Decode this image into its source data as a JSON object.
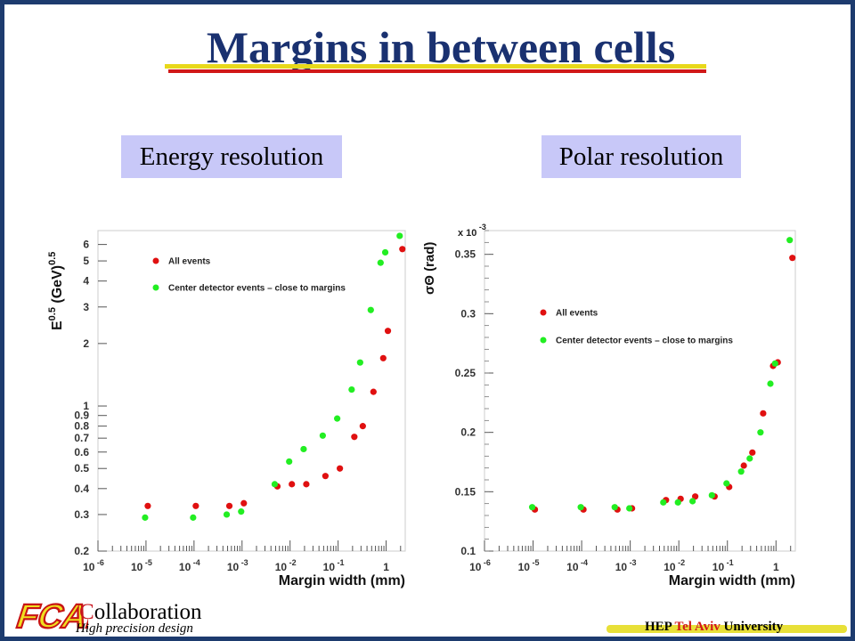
{
  "slide": {
    "title": "Margins in between cells",
    "label_left": "Energy resolution",
    "label_right": "Polar resolution",
    "footer": {
      "logo_text": "FCAL",
      "collab_first": "C",
      "collab_rest": "ollaboration",
      "tagline": "High precision design",
      "inst_a": "HEP ",
      "inst_b": "Tel Aviv",
      "inst_c": " University"
    },
    "colors": {
      "background": "#1d3b6e",
      "title": "#1a3170",
      "label_box": "#c8c8f8",
      "red_series": "#e01010",
      "green_series": "#22ee22"
    }
  },
  "chart_data": [
    {
      "type": "scatter",
      "title": "",
      "xlabel": "Margin width (mm)",
      "ylabel": "E^0.5 (GeV)^0.5",
      "ylabel_main": "E",
      "ylabel_sup1": "0.5",
      "ylabel_unit": " (GeV)",
      "ylabel_sup2": "0.5",
      "xscale": "log",
      "yscale": "log",
      "xlim": [
        1e-06,
        2.5
      ],
      "ylim": [
        0.2,
        7
      ],
      "grid": false,
      "legend_position": "top-left",
      "xticks": [
        {
          "v": 1e-06,
          "base": "10",
          "exp": "-6"
        },
        {
          "v": 1e-05,
          "base": "10",
          "exp": "-5"
        },
        {
          "v": 0.0001,
          "base": "10",
          "exp": "-4"
        },
        {
          "v": 0.001,
          "base": "10",
          "exp": "-3"
        },
        {
          "v": 0.01,
          "base": "10",
          "exp": "-2"
        },
        {
          "v": 0.1,
          "base": "10",
          "exp": "-1"
        },
        {
          "v": 1,
          "base": "1",
          "exp": ""
        }
      ],
      "yticks": [
        {
          "v": 0.2,
          "label": "0.2"
        },
        {
          "v": 0.3,
          "label": "0.3"
        },
        {
          "v": 0.4,
          "label": "0.4"
        },
        {
          "v": 0.5,
          "label": "0.5"
        },
        {
          "v": 0.6,
          "label": "0.6"
        },
        {
          "v": 0.7,
          "label": "0.7"
        },
        {
          "v": 0.8,
          "label": "0.8"
        },
        {
          "v": 0.9,
          "label": "0.9"
        },
        {
          "v": 1,
          "label": "1"
        },
        {
          "v": 2,
          "label": "2"
        },
        {
          "v": 3,
          "label": "3"
        },
        {
          "v": 4,
          "label": "4"
        },
        {
          "v": 5,
          "label": "5"
        },
        {
          "v": 6,
          "label": "6"
        }
      ],
      "series": [
        {
          "name": "All events",
          "color": "#e01010",
          "points": [
            [
              1e-05,
              0.33
            ],
            [
              0.0001,
              0.33
            ],
            [
              0.0005,
              0.33
            ],
            [
              0.001,
              0.34
            ],
            [
              0.005,
              0.41
            ],
            [
              0.01,
              0.42
            ],
            [
              0.02,
              0.42
            ],
            [
              0.05,
              0.46
            ],
            [
              0.1,
              0.5
            ],
            [
              0.2,
              0.71
            ],
            [
              0.3,
              0.8
            ],
            [
              0.5,
              1.17
            ],
            [
              0.8,
              1.7
            ],
            [
              1.0,
              2.3
            ],
            [
              2.0,
              5.7
            ]
          ]
        },
        {
          "name": "Center detector events – close to margins",
          "color": "#22ee22",
          "points": [
            [
              1e-05,
              0.29
            ],
            [
              0.0001,
              0.29
            ],
            [
              0.0005,
              0.3
            ],
            [
              0.001,
              0.31
            ],
            [
              0.005,
              0.42
            ],
            [
              0.01,
              0.54
            ],
            [
              0.02,
              0.62
            ],
            [
              0.05,
              0.72
            ],
            [
              0.1,
              0.87
            ],
            [
              0.2,
              1.2
            ],
            [
              0.3,
              1.62
            ],
            [
              0.5,
              2.9
            ],
            [
              0.8,
              4.9
            ],
            [
              1.0,
              5.5
            ],
            [
              2.0,
              6.6
            ]
          ]
        }
      ]
    },
    {
      "type": "scatter",
      "title": "",
      "xlabel": "Margin width (mm)",
      "ylabel": "σΘ (rad)",
      "yscale_note": "x 10",
      "yscale_note_exp": "-3",
      "xscale": "log",
      "yscale": "linear",
      "xlim": [
        1e-06,
        2.5
      ],
      "ylim": [
        0.1,
        0.37
      ],
      "grid": false,
      "legend_position": "left",
      "xticks": [
        {
          "v": 1e-06,
          "base": "10",
          "exp": "-6"
        },
        {
          "v": 1e-05,
          "base": "10",
          "exp": "-5"
        },
        {
          "v": 0.0001,
          "base": "10",
          "exp": "-4"
        },
        {
          "v": 0.001,
          "base": "10",
          "exp": "-3"
        },
        {
          "v": 0.01,
          "base": "10",
          "exp": "-2"
        },
        {
          "v": 0.1,
          "base": "10",
          "exp": "-1"
        },
        {
          "v": 1,
          "base": "1",
          "exp": ""
        }
      ],
      "yticks": [
        {
          "v": 0.1,
          "label": "0.1"
        },
        {
          "v": 0.15,
          "label": "0.15"
        },
        {
          "v": 0.2,
          "label": "0.2"
        },
        {
          "v": 0.25,
          "label": "0.25"
        },
        {
          "v": 0.3,
          "label": "0.3"
        },
        {
          "v": 0.35,
          "label": "0.35"
        }
      ],
      "series": [
        {
          "name": "All events",
          "color": "#e01010",
          "points": [
            [
              1e-05,
              0.135
            ],
            [
              0.0001,
              0.135
            ],
            [
              0.0005,
              0.135
            ],
            [
              0.001,
              0.136
            ],
            [
              0.005,
              0.143
            ],
            [
              0.01,
              0.144
            ],
            [
              0.02,
              0.146
            ],
            [
              0.05,
              0.146
            ],
            [
              0.1,
              0.154
            ],
            [
              0.2,
              0.172
            ],
            [
              0.3,
              0.183
            ],
            [
              0.5,
              0.216
            ],
            [
              0.8,
              0.256
            ],
            [
              1.0,
              0.259
            ],
            [
              2.0,
              0.347
            ]
          ]
        },
        {
          "name": "Center detector events – close to margins",
          "color": "#22ee22",
          "points": [
            [
              1e-05,
              0.137
            ],
            [
              0.0001,
              0.137
            ],
            [
              0.0005,
              0.137
            ],
            [
              0.001,
              0.136
            ],
            [
              0.005,
              0.141
            ],
            [
              0.01,
              0.141
            ],
            [
              0.02,
              0.142
            ],
            [
              0.05,
              0.147
            ],
            [
              0.1,
              0.157
            ],
            [
              0.2,
              0.167
            ],
            [
              0.3,
              0.178
            ],
            [
              0.5,
              0.2
            ],
            [
              0.8,
              0.241
            ],
            [
              1.0,
              0.258
            ],
            [
              2.0,
              0.362
            ]
          ]
        }
      ]
    }
  ]
}
